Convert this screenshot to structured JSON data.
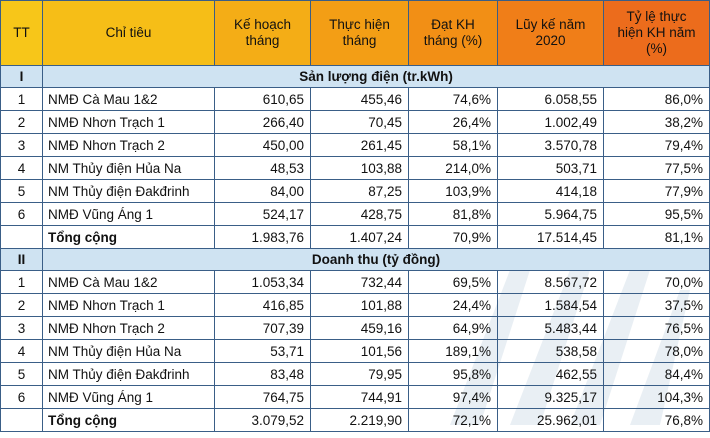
{
  "header": {
    "tt": "TT",
    "chi_tieu": "Chỉ tiêu",
    "ke_hoach_line1": "Kế hoạch",
    "ke_hoach_line2": "tháng",
    "thuc_hien_line1": "Thực hiện",
    "thuc_hien_line2": "tháng",
    "dat_kh_line1": "Đạt KH",
    "dat_kh_line2": "tháng (%)",
    "luy_ke_line1": "Lũy kế năm",
    "luy_ke_line2": "2020",
    "ty_le_line1": "Tỷ lệ thực",
    "ty_le_line2": "hiện KH năm",
    "ty_le_line3": "(%)"
  },
  "sections": [
    {
      "roman": "I",
      "title": "Sản lượng điện (tr.kWh)",
      "rows": [
        {
          "tt": "1",
          "name": "NMĐ Cà Mau 1&2",
          "kh": "610,65",
          "th": "455,46",
          "dat": "74,6%",
          "luyke": "6.058,55",
          "tyle": "86,0%"
        },
        {
          "tt": "2",
          "name": "NMĐ Nhơn Trạch 1",
          "kh": "266,40",
          "th": "70,45",
          "dat": "26,4%",
          "luyke": "1.002,49",
          "tyle": "38,2%"
        },
        {
          "tt": "3",
          "name": "NMĐ Nhơn Trạch 2",
          "kh": "450,00",
          "th": "261,45",
          "dat": "58,1%",
          "luyke": "3.570,78",
          "tyle": "79,4%"
        },
        {
          "tt": "4",
          "name": "NM Thủy điện Hủa Na",
          "kh": "48,53",
          "th": "103,88",
          "dat": "214,0%",
          "luyke": "503,71",
          "tyle": "77,5%"
        },
        {
          "tt": "5",
          "name": "NM Thủy điện Đakđrinh",
          "kh": "84,00",
          "th": "87,25",
          "dat": "103,9%",
          "luyke": "414,18",
          "tyle": "77,9%"
        },
        {
          "tt": "6",
          "name": "NMĐ Vũng Áng 1",
          "kh": "524,17",
          "th": "428,75",
          "dat": "81,8%",
          "luyke": "5.964,75",
          "tyle": "95,5%"
        }
      ],
      "total": {
        "name": "Tổng cộng",
        "kh": "1.983,76",
        "th": "1.407,24",
        "dat": "70,9%",
        "luyke": "17.514,45",
        "tyle": "81,1%"
      }
    },
    {
      "roman": "II",
      "title": "Doanh thu (tỷ đồng)",
      "rows": [
        {
          "tt": "1",
          "name": "NMĐ Cà Mau 1&2",
          "kh": "1.053,34",
          "th": "732,44",
          "dat": "69,5%",
          "luyke": "8.567,72",
          "tyle": "70,0%"
        },
        {
          "tt": "2",
          "name": "NMĐ Nhơn Trạch 1",
          "kh": "416,85",
          "th": "101,88",
          "dat": "24,4%",
          "luyke": "1.584,54",
          "tyle": "37,5%"
        },
        {
          "tt": "3",
          "name": "NMĐ Nhơn Trạch 2",
          "kh": "707,39",
          "th": "459,16",
          "dat": "64,9%",
          "luyke": "5.483,44",
          "tyle": "76,5%"
        },
        {
          "tt": "4",
          "name": "NM Thủy điện Hủa Na",
          "kh": "53,71",
          "th": "101,56",
          "dat": "189,1%",
          "luyke": "538,58",
          "tyle": "78,0%"
        },
        {
          "tt": "5",
          "name": "NM Thủy điện Đakđrinh",
          "kh": "83,48",
          "th": "79,95",
          "dat": "95,8%",
          "luyke": "462,55",
          "tyle": "84,4%"
        },
        {
          "tt": "6",
          "name": "NMĐ Vũng Áng 1",
          "kh": "764,75",
          "th": "744,91",
          "dat": "97,4%",
          "luyke": "9.325,17",
          "tyle": "104,3%"
        }
      ],
      "total": {
        "name": "Tổng cộng",
        "kh": "3.079,52",
        "th": "2.219,90",
        "dat": "72,1%",
        "luyke": "25.962,01",
        "tyle": "76,8%"
      }
    }
  ]
}
